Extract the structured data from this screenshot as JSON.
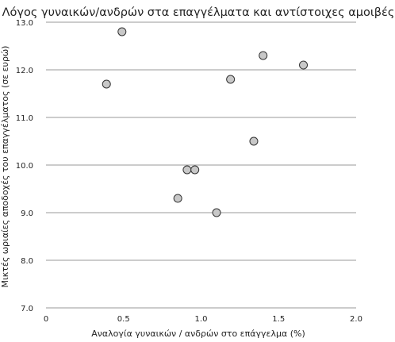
{
  "chart_data": {
    "type": "scatter",
    "title": "Λόγος γυναικών/ανδρών στα επαγγέλματα και αντίστοιχες αμοιβές",
    "xlabel": "Αναλογία γυναικών / ανδρών στο επάγγελμα (%)",
    "ylabel": "Μικτές ωριαίες αποδοχές του επαγγέλματος (σε ευρώ)",
    "xlim": [
      0,
      2.0
    ],
    "ylim": [
      7.0,
      13.0
    ],
    "x_ticks": [
      0,
      0.5,
      1.0,
      1.5,
      2.0
    ],
    "x_tick_labels": [
      "0",
      "0.5",
      "1.0",
      "1.5",
      "2.0"
    ],
    "y_ticks": [
      7.0,
      8.0,
      9.0,
      10.0,
      11.0,
      12.0,
      13.0
    ],
    "y_tick_labels": [
      "7.0",
      "8.0",
      "9.0",
      "10.0",
      "11.0",
      "12.0",
      "13.0"
    ],
    "grid": "horizontal",
    "marker_color": "#c8c8c8",
    "marker_edge_color": "#333333",
    "points": [
      {
        "x": 0.49,
        "y": 12.8
      },
      {
        "x": 0.39,
        "y": 11.7
      },
      {
        "x": 1.4,
        "y": 12.3
      },
      {
        "x": 1.66,
        "y": 12.1
      },
      {
        "x": 1.19,
        "y": 11.8
      },
      {
        "x": 1.34,
        "y": 10.5
      },
      {
        "x": 0.91,
        "y": 9.9
      },
      {
        "x": 0.96,
        "y": 9.9
      },
      {
        "x": 0.85,
        "y": 9.3
      },
      {
        "x": 1.1,
        "y": 9.0
      }
    ]
  }
}
